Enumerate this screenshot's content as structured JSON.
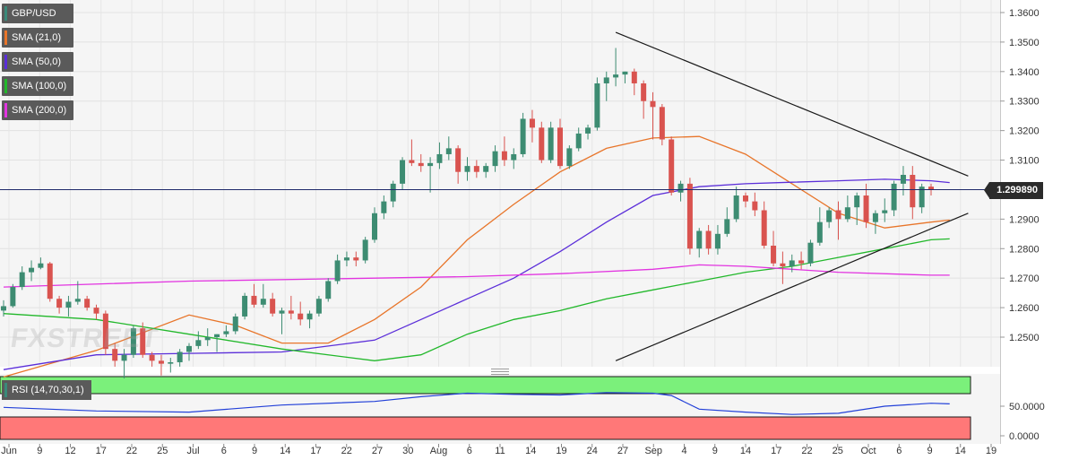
{
  "legend": [
    {
      "label": "GBP/USD",
      "color": "#3a8a7a"
    },
    {
      "label": "SMA (21,0)",
      "color": "#e8752a"
    },
    {
      "label": "SMA (50,0)",
      "color": "#5b2ed9"
    },
    {
      "label": "SMA (100,0)",
      "color": "#22b82b"
    },
    {
      "label": "SMA (200,0)",
      "color": "#e234e0"
    }
  ],
  "rsi_legend": {
    "label": "RSI (14,70,30,1)",
    "color": "#3a8a7a"
  },
  "last_price": "1.299890",
  "watermark": "FXSTREET",
  "chart_data": [
    {
      "type": "candlestick",
      "pair": "GBP/USD",
      "y_axis_ticks": [
        "1.3600",
        "1.3500",
        "1.3400",
        "1.3300",
        "1.3200",
        "1.3100",
        "1.2900",
        "1.2800",
        "1.2700",
        "1.2600",
        "1.2500"
      ],
      "ylim": [
        1.242,
        1.362
      ],
      "x_axis_ticks": [
        "Jun",
        "9",
        "12",
        "17",
        "22",
        "25",
        "Jul",
        "6",
        "9",
        "14",
        "17",
        "22",
        "27",
        "30",
        "Aug",
        "6",
        "11",
        "14",
        "19",
        "24",
        "27",
        "Sep",
        "4",
        "9",
        "14",
        "17",
        "22",
        "25",
        "Oct",
        "6",
        "9",
        "14",
        "19"
      ],
      "last_price": 1.29989,
      "candles": [
        [
          1.259,
          1.2625,
          1.257,
          1.2605
        ],
        [
          1.2605,
          1.268,
          1.26,
          1.267
        ],
        [
          1.267,
          1.274,
          1.266,
          1.272
        ],
        [
          1.272,
          1.276,
          1.269,
          1.2735
        ],
        [
          1.2735,
          1.277,
          1.273,
          1.275
        ],
        [
          1.275,
          1.2755,
          1.262,
          1.263
        ],
        [
          1.263,
          1.264,
          1.258,
          1.26
        ],
        [
          1.26,
          1.264,
          1.257,
          1.262
        ],
        [
          1.262,
          1.269,
          1.261,
          1.263
        ],
        [
          1.263,
          1.264,
          1.259,
          1.26
        ],
        [
          1.26,
          1.261,
          1.256,
          1.258
        ],
        [
          1.258,
          1.259,
          1.244,
          1.246
        ],
        [
          1.246,
          1.248,
          1.24,
          1.242
        ],
        [
          1.242,
          1.246,
          1.236,
          1.244
        ],
        [
          1.244,
          1.254,
          1.243,
          1.253
        ],
        [
          1.253,
          1.255,
          1.243,
          1.244
        ],
        [
          1.244,
          1.245,
          1.24,
          1.242
        ],
        [
          1.242,
          1.244,
          1.237,
          1.241
        ],
        [
          1.241,
          1.243,
          1.238,
          1.2415
        ],
        [
          1.2415,
          1.246,
          1.24,
          1.245
        ],
        [
          1.245,
          1.248,
          1.242,
          1.247
        ],
        [
          1.247,
          1.252,
          1.246,
          1.249
        ],
        [
          1.249,
          1.253,
          1.247,
          1.25
        ],
        [
          1.25,
          1.251,
          1.245,
          1.251
        ],
        [
          1.251,
          1.254,
          1.25,
          1.252
        ],
        [
          1.252,
          1.258,
          1.251,
          1.257
        ],
        [
          1.257,
          1.265,
          1.256,
          1.264
        ],
        [
          1.264,
          1.268,
          1.26,
          1.261
        ],
        [
          1.261,
          1.268,
          1.26,
          1.263
        ],
        [
          1.263,
          1.265,
          1.257,
          1.258
        ],
        [
          1.258,
          1.26,
          1.251,
          1.259
        ],
        [
          1.259,
          1.264,
          1.256,
          1.258
        ],
        [
          1.258,
          1.262,
          1.254,
          1.256
        ],
        [
          1.256,
          1.259,
          1.253,
          1.258
        ],
        [
          1.258,
          1.264,
          1.257,
          1.263
        ],
        [
          1.263,
          1.27,
          1.262,
          1.269
        ],
        [
          1.269,
          1.278,
          1.268,
          1.276
        ],
        [
          1.276,
          1.279,
          1.274,
          1.277
        ],
        [
          1.277,
          1.279,
          1.274,
          1.276
        ],
        [
          1.276,
          1.284,
          1.275,
          1.283
        ],
        [
          1.283,
          1.294,
          1.282,
          1.292
        ],
        [
          1.292,
          1.298,
          1.29,
          1.296
        ],
        [
          1.296,
          1.303,
          1.294,
          1.302
        ],
        [
          1.302,
          1.311,
          1.3,
          1.31
        ],
        [
          1.31,
          1.317,
          1.308,
          1.309
        ],
        [
          1.309,
          1.312,
          1.306,
          1.308
        ],
        [
          1.308,
          1.311,
          1.299,
          1.309
        ],
        [
          1.309,
          1.316,
          1.307,
          1.312
        ],
        [
          1.312,
          1.318,
          1.31,
          1.314
        ],
        [
          1.314,
          1.315,
          1.302,
          1.306
        ],
        [
          1.306,
          1.311,
          1.303,
          1.308
        ],
        [
          1.308,
          1.31,
          1.304,
          1.306
        ],
        [
          1.306,
          1.309,
          1.304,
          1.308
        ],
        [
          1.308,
          1.315,
          1.306,
          1.313
        ],
        [
          1.313,
          1.318,
          1.308,
          1.31
        ],
        [
          1.31,
          1.314,
          1.307,
          1.312
        ],
        [
          1.312,
          1.326,
          1.311,
          1.324
        ],
        [
          1.324,
          1.327,
          1.316,
          1.321
        ],
        [
          1.321,
          1.323,
          1.309,
          1.31
        ],
        [
          1.31,
          1.323,
          1.309,
          1.321
        ],
        [
          1.321,
          1.324,
          1.307,
          1.308
        ],
        [
          1.308,
          1.315,
          1.307,
          1.314
        ],
        [
          1.314,
          1.321,
          1.313,
          1.319
        ],
        [
          1.319,
          1.322,
          1.317,
          1.321
        ],
        [
          1.321,
          1.338,
          1.32,
          1.336
        ],
        [
          1.336,
          1.34,
          1.33,
          1.338
        ],
        [
          1.338,
          1.348,
          1.335,
          1.339
        ],
        [
          1.339,
          1.34,
          1.336,
          1.34
        ],
        [
          1.34,
          1.341,
          1.332,
          1.336
        ],
        [
          1.336,
          1.337,
          1.324,
          1.33
        ],
        [
          1.33,
          1.333,
          1.317,
          1.328
        ],
        [
          1.328,
          1.329,
          1.315,
          1.317
        ],
        [
          1.317,
          1.318,
          1.298,
          1.299
        ],
        [
          1.299,
          1.303,
          1.296,
          1.302
        ],
        [
          1.302,
          1.304,
          1.278,
          1.28
        ],
        [
          1.28,
          1.287,
          1.277,
          1.286
        ],
        [
          1.286,
          1.288,
          1.278,
          1.28
        ],
        [
          1.28,
          1.288,
          1.278,
          1.285
        ],
        [
          1.285,
          1.294,
          1.284,
          1.29
        ],
        [
          1.29,
          1.301,
          1.289,
          1.298
        ],
        [
          1.298,
          1.299,
          1.294,
          1.296
        ],
        [
          1.296,
          1.299,
          1.291,
          1.293
        ],
        [
          1.293,
          1.296,
          1.28,
          1.281
        ],
        [
          1.281,
          1.286,
          1.274,
          1.275
        ],
        [
          1.275,
          1.279,
          1.268,
          1.274
        ],
        [
          1.274,
          1.278,
          1.272,
          1.276
        ],
        [
          1.276,
          1.279,
          1.273,
          1.275
        ],
        [
          1.275,
          1.283,
          1.274,
          1.282
        ],
        [
          1.282,
          1.294,
          1.281,
          1.289
        ],
        [
          1.289,
          1.294,
          1.287,
          1.293
        ],
        [
          1.293,
          1.296,
          1.283,
          1.29
        ],
        [
          1.29,
          1.298,
          1.289,
          1.294
        ],
        [
          1.294,
          1.299,
          1.288,
          1.298
        ],
        [
          1.298,
          1.302,
          1.287,
          1.289
        ],
        [
          1.289,
          1.293,
          1.285,
          1.292
        ],
        [
          1.292,
          1.297,
          1.289,
          1.293
        ],
        [
          1.293,
          1.303,
          1.291,
          1.302
        ],
        [
          1.302,
          1.308,
          1.298,
          1.305
        ],
        [
          1.305,
          1.308,
          1.29,
          1.294
        ],
        [
          1.294,
          1.302,
          1.292,
          1.301
        ],
        [
          1.301,
          1.302,
          1.298,
          1.2999
        ]
      ],
      "overlays": [
        {
          "name": "SMA (21,0)",
          "color": "#e8752a",
          "points": [
            [
              0,
              1.2365
            ],
            [
              10,
              1.2455
            ],
            [
              20,
              1.2575
            ],
            [
              25,
              1.254
            ],
            [
              30,
              1.248
            ],
            [
              35,
              1.248
            ],
            [
              40,
              1.256
            ],
            [
              45,
              1.267
            ],
            [
              50,
              1.283
            ],
            [
              55,
              1.295
            ],
            [
              60,
              1.306
            ],
            [
              65,
              1.314
            ],
            [
              70,
              1.3175
            ],
            [
              75,
              1.318
            ],
            [
              80,
              1.312
            ],
            [
              85,
              1.302
            ],
            [
              90,
              1.292
            ],
            [
              95,
              1.287
            ],
            [
              100,
              1.289
            ],
            [
              102,
              1.2897
            ]
          ]
        },
        {
          "name": "SMA (50,0)",
          "color": "#5b2ed9",
          "points": [
            [
              0,
              1.239
            ],
            [
              10,
              1.244
            ],
            [
              20,
              1.2445
            ],
            [
              30,
              1.245
            ],
            [
              40,
              1.249
            ],
            [
              45,
              1.256
            ],
            [
              50,
              1.263
            ],
            [
              55,
              1.27
            ],
            [
              60,
              1.279
            ],
            [
              65,
              1.289
            ],
            [
              70,
              1.298
            ],
            [
              75,
              1.301
            ],
            [
              80,
              1.302
            ],
            [
              85,
              1.3025
            ],
            [
              90,
              1.303
            ],
            [
              95,
              1.3035
            ],
            [
              100,
              1.303
            ],
            [
              102,
              1.3024
            ]
          ]
        },
        {
          "name": "SMA (100,0)",
          "color": "#22b82b",
          "points": [
            [
              0,
              1.258
            ],
            [
              10,
              1.256
            ],
            [
              20,
              1.251
            ],
            [
              30,
              1.246
            ],
            [
              40,
              1.242
            ],
            [
              45,
              1.244
            ],
            [
              50,
              1.251
            ],
            [
              55,
              1.256
            ],
            [
              60,
              1.259
            ],
            [
              65,
              1.263
            ],
            [
              70,
              1.266
            ],
            [
              75,
              1.269
            ],
            [
              80,
              1.272
            ],
            [
              85,
              1.274
            ],
            [
              90,
              1.277
            ],
            [
              95,
              1.28
            ],
            [
              100,
              1.283
            ],
            [
              102,
              1.2833
            ]
          ]
        },
        {
          "name": "SMA (200,0)",
          "color": "#e234e0",
          "points": [
            [
              0,
              1.267
            ],
            [
              20,
              1.269
            ],
            [
              40,
              1.27
            ],
            [
              50,
              1.2705
            ],
            [
              60,
              1.2715
            ],
            [
              70,
              1.273
            ],
            [
              75,
              1.2745
            ],
            [
              80,
              1.274
            ],
            [
              90,
              1.272
            ],
            [
              100,
              1.271
            ],
            [
              102,
              1.271
            ]
          ]
        }
      ],
      "trendlines": [
        {
          "name": "upper-trendline",
          "points": [
            [
              66,
              1.3533
            ],
            [
              104,
              1.3046
            ]
          ]
        },
        {
          "name": "lower-trendline",
          "points": [
            [
              66,
              1.242
            ],
            [
              104,
              1.292
            ]
          ]
        }
      ]
    },
    {
      "type": "line",
      "name": "RSI (14,70,30,1)",
      "y_axis_ticks": [
        "50.0000",
        "0.0000"
      ],
      "ylim": [
        -5,
        100
      ],
      "overbought": 70,
      "oversold": 30,
      "points": [
        [
          0,
          48
        ],
        [
          10,
          42
        ],
        [
          20,
          40
        ],
        [
          30,
          52
        ],
        [
          40,
          58
        ],
        [
          45,
          66
        ],
        [
          50,
          72
        ],
        [
          55,
          70
        ],
        [
          60,
          69
        ],
        [
          65,
          73
        ],
        [
          70,
          72
        ],
        [
          72,
          68
        ],
        [
          75,
          45
        ],
        [
          80,
          40
        ],
        [
          85,
          36
        ],
        [
          90,
          38
        ],
        [
          95,
          50
        ],
        [
          100,
          55
        ],
        [
          102,
          54
        ]
      ]
    }
  ]
}
